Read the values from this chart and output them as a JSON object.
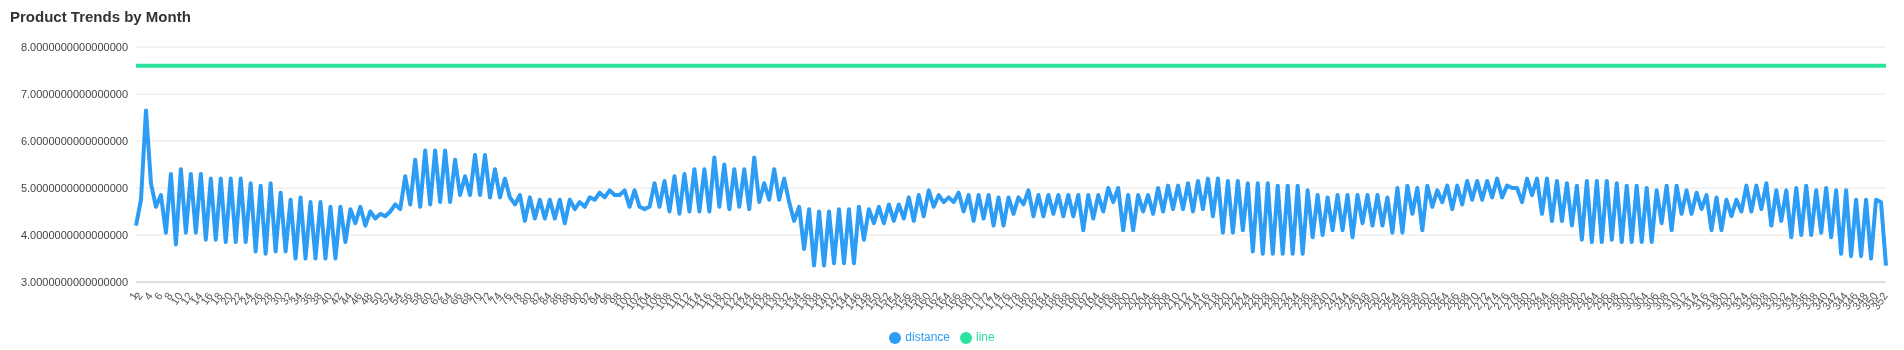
{
  "chart_data": {
    "type": "line",
    "title": "Product Trends by Month",
    "categories": [
      "1",
      "2",
      null,
      "4",
      null,
      "6",
      null,
      "8",
      null,
      "10",
      null,
      "12",
      null,
      "14",
      null,
      "16",
      null,
      "18",
      null,
      "20",
      null,
      "22",
      null,
      "24",
      null,
      "26",
      null,
      "28",
      null,
      "30",
      null,
      "32",
      null,
      "34",
      null,
      "36",
      null,
      "38",
      null,
      "40",
      null,
      "42",
      null,
      "44",
      null,
      "46",
      null,
      "48",
      null,
      "50",
      null,
      "52",
      null,
      "54",
      null,
      "56",
      null,
      "58",
      null,
      "60",
      null,
      "62",
      null,
      "64",
      null,
      "66",
      null,
      "68",
      null,
      "70",
      null,
      "72",
      null,
      "74",
      null,
      "76",
      null,
      "78",
      null,
      "80",
      null,
      "82",
      null,
      "84",
      null,
      "86",
      null,
      "88",
      null,
      "90",
      null,
      "92",
      null,
      "94",
      null,
      "96",
      null,
      "98",
      null,
      "100",
      null,
      "102",
      null,
      "104",
      null,
      "106",
      null,
      "108",
      null,
      "110",
      null,
      "112",
      null,
      "114",
      null,
      "116",
      null,
      "118",
      null,
      "120",
      null,
      "122",
      null,
      "124",
      null,
      "126",
      null,
      "128",
      null,
      "130",
      null,
      "132",
      null,
      "134",
      null,
      "136",
      null,
      "138",
      null,
      "140",
      null,
      "142",
      null,
      "144",
      null,
      "146",
      null,
      "148",
      null,
      "150",
      null,
      "152",
      null,
      "154",
      null,
      "156",
      null,
      "158",
      null,
      "160",
      null,
      "162",
      null,
      "164",
      null,
      "166",
      null,
      "168",
      null,
      "170",
      null,
      "172",
      null,
      "174",
      null,
      "176",
      null,
      "178",
      null,
      "180",
      null,
      "182",
      null,
      "184",
      null,
      "186",
      null,
      "188",
      null,
      "190",
      null,
      "192",
      null,
      "194",
      null,
      "196",
      null,
      "198",
      null,
      "200",
      null,
      "202",
      null,
      "204",
      null,
      "206",
      null,
      "208",
      null,
      "210",
      null,
      "212",
      null,
      "214",
      null,
      "216",
      null,
      "218",
      null,
      "220",
      null,
      "222",
      null,
      "224",
      null,
      "226",
      null,
      "228",
      null,
      "230",
      null,
      "232",
      null,
      "234",
      null,
      "236",
      null,
      "238",
      null,
      "240",
      null,
      "242",
      null,
      "244",
      null,
      "246",
      null,
      "248",
      null,
      "250",
      null,
      "252",
      null,
      "254",
      null,
      "256",
      null,
      "258",
      null,
      "260",
      null,
      "262",
      null,
      "264",
      null,
      "266",
      null,
      "268",
      null,
      "270",
      null,
      "272",
      null,
      "274",
      null,
      "276",
      null,
      "278",
      null,
      "280",
      null,
      "282",
      null,
      "284",
      null,
      "286",
      null,
      "288",
      null,
      "290",
      null,
      "292",
      null,
      "294",
      null,
      "296",
      null,
      "298",
      null,
      "300",
      null,
      "302",
      null,
      "304",
      null,
      "306",
      null,
      "308",
      null,
      "310",
      null,
      "312",
      null,
      "314",
      null,
      "316",
      null,
      "318",
      null,
      "320",
      null,
      "322",
      null,
      "324",
      null,
      "326",
      null,
      "328",
      null,
      "330",
      null,
      "332",
      null,
      "334",
      null,
      "336",
      null,
      "338",
      null,
      "340",
      null,
      "342",
      null,
      "344",
      null,
      "346",
      null,
      "348",
      null,
      "350",
      null,
      "352"
    ],
    "series": [
      {
        "name": "distance",
        "color": "#2d9cf5",
        "values": [
          4.2,
          4.75,
          6.65,
          5.1,
          4.6,
          4.85,
          4.05,
          5.3,
          3.8,
          5.4,
          4.05,
          5.3,
          4.05,
          5.3,
          3.9,
          5.2,
          3.9,
          5.2,
          3.85,
          5.2,
          3.85,
          5.2,
          3.85,
          5.1,
          3.65,
          5.05,
          3.6,
          5.1,
          3.65,
          4.9,
          3.65,
          4.75,
          3.5,
          4.8,
          3.5,
          4.7,
          3.5,
          4.7,
          3.5,
          4.6,
          3.5,
          4.6,
          3.85,
          4.55,
          4.25,
          4.6,
          4.2,
          4.5,
          4.35,
          4.45,
          4.4,
          4.5,
          4.65,
          4.55,
          5.25,
          4.65,
          5.6,
          4.6,
          5.8,
          4.65,
          5.8,
          4.7,
          5.8,
          4.7,
          5.6,
          4.85,
          5.25,
          4.85,
          5.7,
          4.85,
          5.7,
          4.8,
          5.4,
          4.8,
          5.2,
          4.8,
          4.65,
          4.85,
          4.3,
          4.8,
          4.35,
          4.75,
          4.35,
          4.75,
          4.35,
          4.75,
          4.25,
          4.75,
          4.55,
          4.7,
          4.6,
          4.8,
          4.75,
          4.9,
          4.8,
          4.95,
          4.85,
          4.85,
          4.95,
          4.6,
          4.95,
          4.6,
          4.55,
          4.6,
          5.1,
          4.6,
          5.15,
          4.5,
          5.25,
          4.45,
          5.3,
          4.5,
          5.4,
          4.5,
          5.4,
          4.5,
          5.65,
          4.6,
          5.5,
          4.55,
          5.4,
          4.6,
          5.4,
          4.55,
          5.65,
          4.7,
          5.1,
          4.75,
          5.4,
          4.75,
          5.2,
          4.7,
          4.3,
          4.6,
          3.7,
          4.55,
          3.35,
          4.5,
          3.35,
          4.5,
          3.4,
          4.55,
          3.4,
          4.55,
          3.4,
          4.6,
          3.9,
          4.55,
          4.25,
          4.6,
          4.25,
          4.65,
          4.3,
          4.65,
          4.35,
          4.8,
          4.3,
          4.85,
          4.4,
          4.95,
          4.6,
          4.85,
          4.7,
          4.8,
          4.7,
          4.9,
          4.5,
          4.85,
          4.3,
          4.85,
          4.35,
          4.85,
          4.2,
          4.8,
          4.2,
          4.8,
          4.45,
          4.8,
          4.65,
          4.95,
          4.4,
          4.85,
          4.4,
          4.85,
          4.45,
          4.85,
          4.4,
          4.85,
          4.4,
          4.85,
          4.1,
          4.85,
          4.35,
          4.85,
          4.5,
          5.0,
          4.7,
          5.0,
          4.1,
          4.85,
          4.1,
          4.85,
          4.5,
          4.85,
          4.45,
          5.0,
          4.5,
          5.05,
          4.55,
          5.05,
          4.55,
          5.1,
          4.5,
          5.15,
          4.55,
          5.2,
          4.4,
          5.2,
          4.05,
          5.15,
          4.05,
          5.15,
          4.1,
          5.1,
          3.65,
          5.1,
          3.6,
          5.1,
          3.6,
          5.05,
          3.6,
          5.05,
          3.6,
          5.05,
          3.6,
          4.95,
          3.95,
          4.85,
          4.0,
          4.8,
          4.1,
          4.85,
          4.1,
          4.85,
          3.95,
          4.85,
          4.25,
          4.85,
          4.2,
          4.85,
          4.2,
          4.8,
          4.05,
          5.0,
          4.05,
          5.05,
          4.45,
          5.0,
          4.1,
          5.05,
          4.6,
          4.95,
          4.7,
          5.05,
          4.55,
          5.05,
          4.65,
          5.15,
          4.75,
          5.15,
          4.75,
          5.15,
          4.8,
          5.2,
          4.8,
          5.05,
          5.0,
          5.0,
          4.7,
          5.2,
          4.85,
          5.2,
          4.45,
          5.2,
          4.3,
          5.15,
          4.3,
          5.1,
          4.2,
          5.05,
          3.9,
          5.15,
          3.85,
          5.15,
          3.85,
          5.15,
          3.9,
          5.1,
          3.85,
          5.05,
          3.85,
          5.05,
          3.85,
          5.0,
          3.85,
          4.95,
          4.25,
          5.05,
          4.1,
          5.05,
          4.45,
          4.95,
          4.45,
          4.9,
          4.55,
          4.85,
          4.1,
          4.8,
          4.1,
          4.75,
          4.4,
          4.75,
          4.5,
          5.05,
          4.5,
          5.05,
          4.55,
          5.1,
          4.2,
          4.95,
          4.3,
          4.95,
          3.95,
          5.0,
          4.0,
          5.05,
          4.0,
          4.95,
          4.05,
          5.0,
          3.95,
          4.95,
          3.6,
          4.95,
          3.55,
          4.75,
          3.55,
          4.75,
          3.5,
          4.75,
          4.7,
          3.35
        ]
      },
      {
        "name": "line",
        "color": "#2ae29d",
        "values": [
          7.6,
          7.6,
          7.6,
          7.6,
          7.6,
          7.6,
          7.6,
          7.6,
          7.6,
          7.6,
          7.6,
          7.6,
          7.6,
          7.6,
          7.6,
          7.6,
          7.6,
          7.6,
          7.6,
          7.6,
          7.6,
          7.6,
          7.6,
          7.6,
          7.6,
          7.6,
          7.6,
          7.6,
          7.6,
          7.6,
          7.6,
          7.6,
          7.6,
          7.6,
          7.6,
          7.6,
          7.6,
          7.6,
          7.6,
          7.6,
          7.6,
          7.6,
          7.6,
          7.6,
          7.6,
          7.6,
          7.6,
          7.6,
          7.6,
          7.6,
          7.6,
          7.6,
          7.6,
          7.6,
          7.6,
          7.6,
          7.6,
          7.6,
          7.6,
          7.6,
          7.6,
          7.6,
          7.6,
          7.6,
          7.6,
          7.6,
          7.6,
          7.6,
          7.6,
          7.6,
          7.6,
          7.6,
          7.6,
          7.6,
          7.6,
          7.6,
          7.6,
          7.6,
          7.6,
          7.6,
          7.6,
          7.6,
          7.6,
          7.6,
          7.6,
          7.6,
          7.6,
          7.6,
          7.6,
          7.6,
          7.6,
          7.6,
          7.6,
          7.6,
          7.6,
          7.6,
          7.6,
          7.6,
          7.6,
          7.6,
          7.6,
          7.6,
          7.6,
          7.6,
          7.6,
          7.6,
          7.6,
          7.6,
          7.6,
          7.6,
          7.6,
          7.6,
          7.6,
          7.6,
          7.6,
          7.6,
          7.6,
          7.6,
          7.6,
          7.6,
          7.6,
          7.6,
          7.6,
          7.6,
          7.6,
          7.6,
          7.6,
          7.6,
          7.6,
          7.6,
          7.6,
          7.6,
          7.6,
          7.6,
          7.6,
          7.6,
          7.6,
          7.6,
          7.6,
          7.6,
          7.6,
          7.6,
          7.6,
          7.6,
          7.6,
          7.6,
          7.6,
          7.6,
          7.6,
          7.6,
          7.6,
          7.6,
          7.6,
          7.6,
          7.6,
          7.6,
          7.6,
          7.6,
          7.6,
          7.6,
          7.6,
          7.6,
          7.6,
          7.6,
          7.6,
          7.6,
          7.6,
          7.6,
          7.6,
          7.6,
          7.6,
          7.6,
          7.6,
          7.6,
          7.6,
          7.6,
          7.6,
          7.6,
          7.6,
          7.6,
          7.6,
          7.6,
          7.6,
          7.6,
          7.6,
          7.6,
          7.6,
          7.6,
          7.6,
          7.6,
          7.6,
          7.6,
          7.6,
          7.6,
          7.6,
          7.6,
          7.6,
          7.6,
          7.6,
          7.6,
          7.6,
          7.6,
          7.6,
          7.6,
          7.6,
          7.6,
          7.6,
          7.6,
          7.6,
          7.6,
          7.6,
          7.6,
          7.6,
          7.6,
          7.6,
          7.6,
          7.6,
          7.6,
          7.6,
          7.6,
          7.6,
          7.6,
          7.6,
          7.6,
          7.6,
          7.6,
          7.6,
          7.6,
          7.6,
          7.6,
          7.6,
          7.6,
          7.6,
          7.6,
          7.6,
          7.6,
          7.6,
          7.6,
          7.6,
          7.6,
          7.6,
          7.6,
          7.6,
          7.6,
          7.6,
          7.6,
          7.6,
          7.6,
          7.6,
          7.6,
          7.6,
          7.6,
          7.6,
          7.6,
          7.6,
          7.6,
          7.6,
          7.6,
          7.6,
          7.6,
          7.6,
          7.6,
          7.6,
          7.6,
          7.6,
          7.6,
          7.6,
          7.6,
          7.6,
          7.6,
          7.6,
          7.6,
          7.6,
          7.6,
          7.6,
          7.6,
          7.6,
          7.6,
          7.6,
          7.6,
          7.6,
          7.6,
          7.6,
          7.6,
          7.6,
          7.6,
          7.6,
          7.6,
          7.6,
          7.6,
          7.6,
          7.6,
          7.6,
          7.6,
          7.6,
          7.6,
          7.6,
          7.6,
          7.6,
          7.6,
          7.6,
          7.6,
          7.6,
          7.6,
          7.6,
          7.6,
          7.6,
          7.6,
          7.6,
          7.6,
          7.6,
          7.6,
          7.6,
          7.6,
          7.6,
          7.6,
          7.6,
          7.6,
          7.6,
          7.6,
          7.6,
          7.6,
          7.6,
          7.6,
          7.6,
          7.6,
          7.6,
          7.6,
          7.6,
          7.6,
          7.6,
          7.6,
          7.6,
          7.6,
          7.6,
          7.6,
          7.6,
          7.6,
          7.6,
          7.6,
          7.6,
          7.6,
          7.6,
          7.6,
          7.6,
          7.6,
          7.6,
          7.6,
          7.6,
          7.6,
          7.6,
          7.6
        ]
      }
    ],
    "ylim": [
      3,
      8
    ],
    "yticks": [
      {
        "value": 3,
        "label": "3.0000000000000000"
      },
      {
        "value": 4,
        "label": "4.0000000000000000"
      },
      {
        "value": 5,
        "label": "5.0000000000000000"
      },
      {
        "value": 6,
        "label": "6.0000000000000000"
      },
      {
        "value": 7,
        "label": "7.0000000000000000"
      },
      {
        "value": 8,
        "label": "8.0000000000000000"
      }
    ],
    "grid": "y",
    "legend": "bottom",
    "marker": "none",
    "line_style": "solid"
  }
}
